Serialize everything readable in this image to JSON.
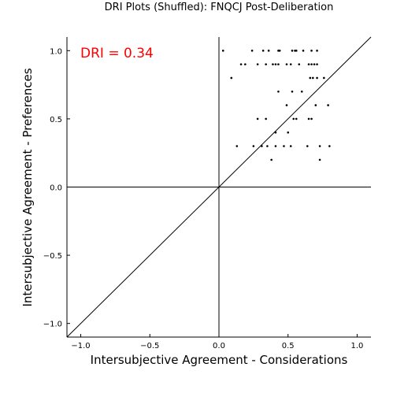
{
  "chart_data": {
    "type": "scatter",
    "title": "DRI Plots (Shuffled): FNQCJ Post-Deliberation",
    "xlabel": "Intersubjective Agreement - Considerations",
    "ylabel": "Intersubjective Agreement - Preferences",
    "xlim": [
      -1.1,
      1.1
    ],
    "ylim": [
      -1.1,
      1.1
    ],
    "xticks": [
      -1.0,
      -0.5,
      0.0,
      0.5,
      1.0
    ],
    "xtick_labels": [
      "−1.0",
      "−0.5",
      "0.0",
      "0.5",
      "1.0"
    ],
    "yticks": [
      -1.0,
      -0.5,
      0.0,
      0.5,
      1.0
    ],
    "ytick_labels": [
      "−1.0",
      "−0.5",
      "0.0",
      "0.5",
      "1.0"
    ],
    "grid": false,
    "legend": false,
    "reference_lines": [
      "x = 0",
      "y = 0",
      "y = x"
    ],
    "annotation": {
      "text": "DRI = 0.34",
      "color": "#ff0000"
    },
    "marker_color": "#000000",
    "points": [
      {
        "x": 0.03,
        "y": 1.0
      },
      {
        "x": 0.24,
        "y": 1.0
      },
      {
        "x": 0.32,
        "y": 1.0
      },
      {
        "x": 0.36,
        "y": 1.0
      },
      {
        "x": 0.43,
        "y": 1.0
      },
      {
        "x": 0.44,
        "y": 1.0
      },
      {
        "x": 0.53,
        "y": 1.0
      },
      {
        "x": 0.55,
        "y": 1.0
      },
      {
        "x": 0.56,
        "y": 1.0
      },
      {
        "x": 0.61,
        "y": 1.0
      },
      {
        "x": 0.67,
        "y": 1.0
      },
      {
        "x": 0.71,
        "y": 1.0
      },
      {
        "x": 0.16,
        "y": 0.9
      },
      {
        "x": 0.19,
        "y": 0.9
      },
      {
        "x": 0.28,
        "y": 0.9
      },
      {
        "x": 0.34,
        "y": 0.9
      },
      {
        "x": 0.39,
        "y": 0.9
      },
      {
        "x": 0.41,
        "y": 0.9
      },
      {
        "x": 0.43,
        "y": 0.9
      },
      {
        "x": 0.49,
        "y": 0.9
      },
      {
        "x": 0.52,
        "y": 0.9
      },
      {
        "x": 0.58,
        "y": 0.9
      },
      {
        "x": 0.65,
        "y": 0.9
      },
      {
        "x": 0.67,
        "y": 0.9
      },
      {
        "x": 0.69,
        "y": 0.9
      },
      {
        "x": 0.71,
        "y": 0.9
      },
      {
        "x": 0.09,
        "y": 0.8
      },
      {
        "x": 0.66,
        "y": 0.8
      },
      {
        "x": 0.68,
        "y": 0.8
      },
      {
        "x": 0.71,
        "y": 0.8
      },
      {
        "x": 0.76,
        "y": 0.8
      },
      {
        "x": 0.43,
        "y": 0.7
      },
      {
        "x": 0.53,
        "y": 0.7
      },
      {
        "x": 0.6,
        "y": 0.7
      },
      {
        "x": 0.49,
        "y": 0.6
      },
      {
        "x": 0.7,
        "y": 0.6
      },
      {
        "x": 0.79,
        "y": 0.6
      },
      {
        "x": 0.28,
        "y": 0.5
      },
      {
        "x": 0.34,
        "y": 0.5
      },
      {
        "x": 0.54,
        "y": 0.5
      },
      {
        "x": 0.56,
        "y": 0.5
      },
      {
        "x": 0.65,
        "y": 0.5
      },
      {
        "x": 0.67,
        "y": 0.5
      },
      {
        "x": 0.41,
        "y": 0.4
      },
      {
        "x": 0.5,
        "y": 0.4
      },
      {
        "x": 0.13,
        "y": 0.3
      },
      {
        "x": 0.25,
        "y": 0.3
      },
      {
        "x": 0.31,
        "y": 0.3
      },
      {
        "x": 0.35,
        "y": 0.3
      },
      {
        "x": 0.41,
        "y": 0.3
      },
      {
        "x": 0.47,
        "y": 0.3
      },
      {
        "x": 0.52,
        "y": 0.3
      },
      {
        "x": 0.64,
        "y": 0.3
      },
      {
        "x": 0.73,
        "y": 0.3
      },
      {
        "x": 0.8,
        "y": 0.3
      },
      {
        "x": 0.38,
        "y": 0.2
      },
      {
        "x": 0.73,
        "y": 0.2
      }
    ]
  }
}
